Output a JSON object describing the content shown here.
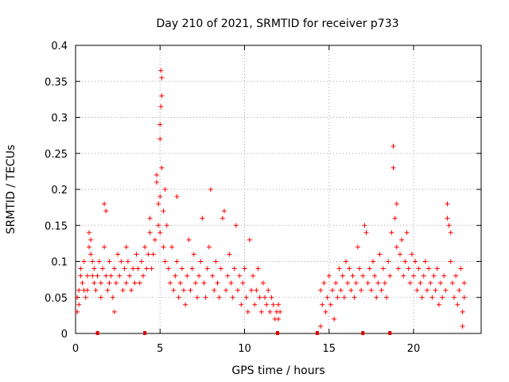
{
  "chart_data": {
    "type": "scatter",
    "title": "Day 210 of 2021, SRMTID for receiver p733",
    "xlabel": "GPS time / hours",
    "ylabel": "SRMTID / TECUs",
    "xlim": [
      0,
      24
    ],
    "ylim": [
      0,
      0.4
    ],
    "xticks": [
      0,
      5,
      10,
      15,
      20
    ],
    "xtick_labels": [
      "0",
      "5",
      "10",
      "15",
      "20"
    ],
    "yticks": [
      0,
      0.05,
      0.1,
      0.15,
      0.2,
      0.25,
      0.3,
      0.35,
      0.4
    ],
    "ytick_labels": [
      "0",
      "0.05",
      "0.1",
      "0.15",
      "0.2",
      "0.25",
      "0.3",
      "0.35",
      "0.4"
    ],
    "grid": true,
    "marker": "+",
    "color": "#ff0000",
    "baseline_flags_hours": [
      1.3,
      4.1,
      11.95,
      14.3,
      17.0,
      18.6
    ],
    "data_gap_hours": [
      12.1,
      14.4
    ],
    "series": [
      {
        "name": "SRMTID",
        "points": [
          [
            0.1,
            0.03
          ],
          [
            0.1,
            0.05
          ],
          [
            0.2,
            0.06
          ],
          [
            0.2,
            0.04
          ],
          [
            0.3,
            0.08
          ],
          [
            0.3,
            0.09
          ],
          [
            0.4,
            0.07
          ],
          [
            0.5,
            0.06
          ],
          [
            0.5,
            0.1
          ],
          [
            0.6,
            0.05
          ],
          [
            0.7,
            0.08
          ],
          [
            0.7,
            0.06
          ],
          [
            0.8,
            0.12
          ],
          [
            0.8,
            0.14
          ],
          [
            0.9,
            0.13
          ],
          [
            0.9,
            0.11
          ],
          [
            1.0,
            0.1
          ],
          [
            1.0,
            0.08
          ],
          [
            1.1,
            0.07
          ],
          [
            1.1,
            0.09
          ],
          [
            1.2,
            0.06
          ],
          [
            1.3,
            0.08
          ],
          [
            1.4,
            0.1
          ],
          [
            1.5,
            0.07
          ],
          [
            1.5,
            0.05
          ],
          [
            1.6,
            0.09
          ],
          [
            1.7,
            0.12
          ],
          [
            1.7,
            0.18
          ],
          [
            1.8,
            0.17
          ],
          [
            1.8,
            0.08
          ],
          [
            1.9,
            0.06
          ],
          [
            2.0,
            0.07
          ],
          [
            2.0,
            0.1
          ],
          [
            2.1,
            0.08
          ],
          [
            2.2,
            0.05
          ],
          [
            2.3,
            0.09
          ],
          [
            2.3,
            0.03
          ],
          [
            2.4,
            0.07
          ],
          [
            2.5,
            0.11
          ],
          [
            2.6,
            0.08
          ],
          [
            2.7,
            0.1
          ],
          [
            2.8,
            0.06
          ],
          [
            2.9,
            0.09
          ],
          [
            3.0,
            0.12
          ],
          [
            3.0,
            0.07
          ],
          [
            3.1,
            0.1
          ],
          [
            3.2,
            0.08
          ],
          [
            3.3,
            0.06
          ],
          [
            3.4,
            0.09
          ],
          [
            3.5,
            0.07
          ],
          [
            3.6,
            0.11
          ],
          [
            3.7,
            0.09
          ],
          [
            3.8,
            0.07
          ],
          [
            3.9,
            0.1
          ],
          [
            4.0,
            0.08
          ],
          [
            4.1,
            0.12
          ],
          [
            4.2,
            0.09
          ],
          [
            4.3,
            0.11
          ],
          [
            4.4,
            0.14
          ],
          [
            4.4,
            0.16
          ],
          [
            4.5,
            0.09
          ],
          [
            4.6,
            0.11
          ],
          [
            4.7,
            0.13
          ],
          [
            4.8,
            0.21
          ],
          [
            4.8,
            0.22
          ],
          [
            4.9,
            0.18
          ],
          [
            4.9,
            0.15
          ],
          [
            5.0,
            0.14
          ],
          [
            5.0,
            0.19
          ],
          [
            5.0,
            0.27
          ],
          [
            5.0,
            0.29
          ],
          [
            5.05,
            0.315
          ],
          [
            5.1,
            0.33
          ],
          [
            5.1,
            0.355
          ],
          [
            5.05,
            0.365
          ],
          [
            5.1,
            0.23
          ],
          [
            5.2,
            0.17
          ],
          [
            5.2,
            0.12
          ],
          [
            5.3,
            0.1
          ],
          [
            5.3,
            0.2
          ],
          [
            5.4,
            0.15
          ],
          [
            5.5,
            0.09
          ],
          [
            5.6,
            0.07
          ],
          [
            5.7,
            0.12
          ],
          [
            5.8,
            0.06
          ],
          [
            5.9,
            0.08
          ],
          [
            6.0,
            0.1
          ],
          [
            6.0,
            0.19
          ],
          [
            6.1,
            0.05
          ],
          [
            6.2,
            0.07
          ],
          [
            6.3,
            0.09
          ],
          [
            6.4,
            0.06
          ],
          [
            6.5,
            0.04
          ],
          [
            6.6,
            0.08
          ],
          [
            6.7,
            0.13
          ],
          [
            6.8,
            0.06
          ],
          [
            6.9,
            0.09
          ],
          [
            7.0,
            0.11
          ],
          [
            7.1,
            0.07
          ],
          [
            7.2,
            0.05
          ],
          [
            7.3,
            0.08
          ],
          [
            7.4,
            0.1
          ],
          [
            7.5,
            0.16
          ],
          [
            7.6,
            0.07
          ],
          [
            7.7,
            0.05
          ],
          [
            7.8,
            0.09
          ],
          [
            7.9,
            0.12
          ],
          [
            8.0,
            0.2
          ],
          [
            8.1,
            0.08
          ],
          [
            8.2,
            0.06
          ],
          [
            8.3,
            0.1
          ],
          [
            8.4,
            0.07
          ],
          [
            8.5,
            0.05
          ],
          [
            8.6,
            0.09
          ],
          [
            8.7,
            0.16
          ],
          [
            8.8,
            0.17
          ],
          [
            8.9,
            0.06
          ],
          [
            9.0,
            0.08
          ],
          [
            9.1,
            0.11
          ],
          [
            9.2,
            0.07
          ],
          [
            9.3,
            0.05
          ],
          [
            9.4,
            0.09
          ],
          [
            9.5,
            0.15
          ],
          [
            9.6,
            0.06
          ],
          [
            9.7,
            0.08
          ],
          [
            9.8,
            0.04
          ],
          [
            9.9,
            0.07
          ],
          [
            10.0,
            0.09
          ],
          [
            10.1,
            0.05
          ],
          [
            10.2,
            0.03
          ],
          [
            10.3,
            0.13
          ],
          [
            10.4,
            0.06
          ],
          [
            10.5,
            0.08
          ],
          [
            10.6,
            0.04
          ],
          [
            10.7,
            0.06
          ],
          [
            10.8,
            0.09
          ],
          [
            10.9,
            0.05
          ],
          [
            11.0,
            0.03
          ],
          [
            11.1,
            0.07
          ],
          [
            11.2,
            0.05
          ],
          [
            11.3,
            0.04
          ],
          [
            11.4,
            0.06
          ],
          [
            11.5,
            0.03
          ],
          [
            11.6,
            0.05
          ],
          [
            11.7,
            0.04
          ],
          [
            11.8,
            0.02
          ],
          [
            11.9,
            0.03
          ],
          [
            12.0,
            0.04
          ],
          [
            12.0,
            0.02
          ],
          [
            12.1,
            0.03
          ],
          [
            14.5,
            0.01
          ],
          [
            14.5,
            0.06
          ],
          [
            14.6,
            0.04
          ],
          [
            14.7,
            0.07
          ],
          [
            14.8,
            0.03
          ],
          [
            14.9,
            0.05
          ],
          [
            15.0,
            0.08
          ],
          [
            15.1,
            0.04
          ],
          [
            15.2,
            0.06
          ],
          [
            15.3,
            0.02
          ],
          [
            15.4,
            0.07
          ],
          [
            15.5,
            0.05
          ],
          [
            15.6,
            0.09
          ],
          [
            15.7,
            0.06
          ],
          [
            15.8,
            0.08
          ],
          [
            15.9,
            0.05
          ],
          [
            16.0,
            0.1
          ],
          [
            16.1,
            0.07
          ],
          [
            16.2,
            0.09
          ],
          [
            16.3,
            0.06
          ],
          [
            16.4,
            0.08
          ],
          [
            16.5,
            0.05
          ],
          [
            16.6,
            0.07
          ],
          [
            16.7,
            0.12
          ],
          [
            16.8,
            0.09
          ],
          [
            16.9,
            0.06
          ],
          [
            17.0,
            0.08
          ],
          [
            17.1,
            0.15
          ],
          [
            17.2,
            0.14
          ],
          [
            17.3,
            0.07
          ],
          [
            17.4,
            0.09
          ],
          [
            17.5,
            0.06
          ],
          [
            17.6,
            0.1
          ],
          [
            17.7,
            0.08
          ],
          [
            17.8,
            0.05
          ],
          [
            17.9,
            0.07
          ],
          [
            18.0,
            0.11
          ],
          [
            18.1,
            0.06
          ],
          [
            18.2,
            0.09
          ],
          [
            18.3,
            0.07
          ],
          [
            18.4,
            0.05
          ],
          [
            18.5,
            0.1
          ],
          [
            18.6,
            0.08
          ],
          [
            18.7,
            0.14
          ],
          [
            18.8,
            0.26
          ],
          [
            18.8,
            0.23
          ],
          [
            18.9,
            0.16
          ],
          [
            19.0,
            0.18
          ],
          [
            19.0,
            0.12
          ],
          [
            19.1,
            0.09
          ],
          [
            19.2,
            0.11
          ],
          [
            19.3,
            0.13
          ],
          [
            19.4,
            0.08
          ],
          [
            19.5,
            0.1
          ],
          [
            19.6,
            0.14
          ],
          [
            19.7,
            0.09
          ],
          [
            19.8,
            0.07
          ],
          [
            19.9,
            0.11
          ],
          [
            20.0,
            0.08
          ],
          [
            20.1,
            0.1
          ],
          [
            20.2,
            0.06
          ],
          [
            20.3,
            0.09
          ],
          [
            20.4,
            0.07
          ],
          [
            20.5,
            0.05
          ],
          [
            20.6,
            0.08
          ],
          [
            20.7,
            0.1
          ],
          [
            20.8,
            0.06
          ],
          [
            20.9,
            0.09
          ],
          [
            21.0,
            0.07
          ],
          [
            21.1,
            0.05
          ],
          [
            21.2,
            0.08
          ],
          [
            21.3,
            0.06
          ],
          [
            21.4,
            0.09
          ],
          [
            21.5,
            0.04
          ],
          [
            21.6,
            0.07
          ],
          [
            21.7,
            0.05
          ],
          [
            21.8,
            0.08
          ],
          [
            21.9,
            0.06
          ],
          [
            22.0,
            0.18
          ],
          [
            22.0,
            0.16
          ],
          [
            22.1,
            0.15
          ],
          [
            22.2,
            0.14
          ],
          [
            22.2,
            0.1
          ],
          [
            22.3,
            0.07
          ],
          [
            22.4,
            0.05
          ],
          [
            22.5,
            0.08
          ],
          [
            22.6,
            0.04
          ],
          [
            22.7,
            0.06
          ],
          [
            22.8,
            0.09
          ],
          [
            22.9,
            0.03
          ],
          [
            22.9,
            0.01
          ],
          [
            23.0,
            0.05
          ],
          [
            23.0,
            0.07
          ]
        ]
      }
    ]
  }
}
